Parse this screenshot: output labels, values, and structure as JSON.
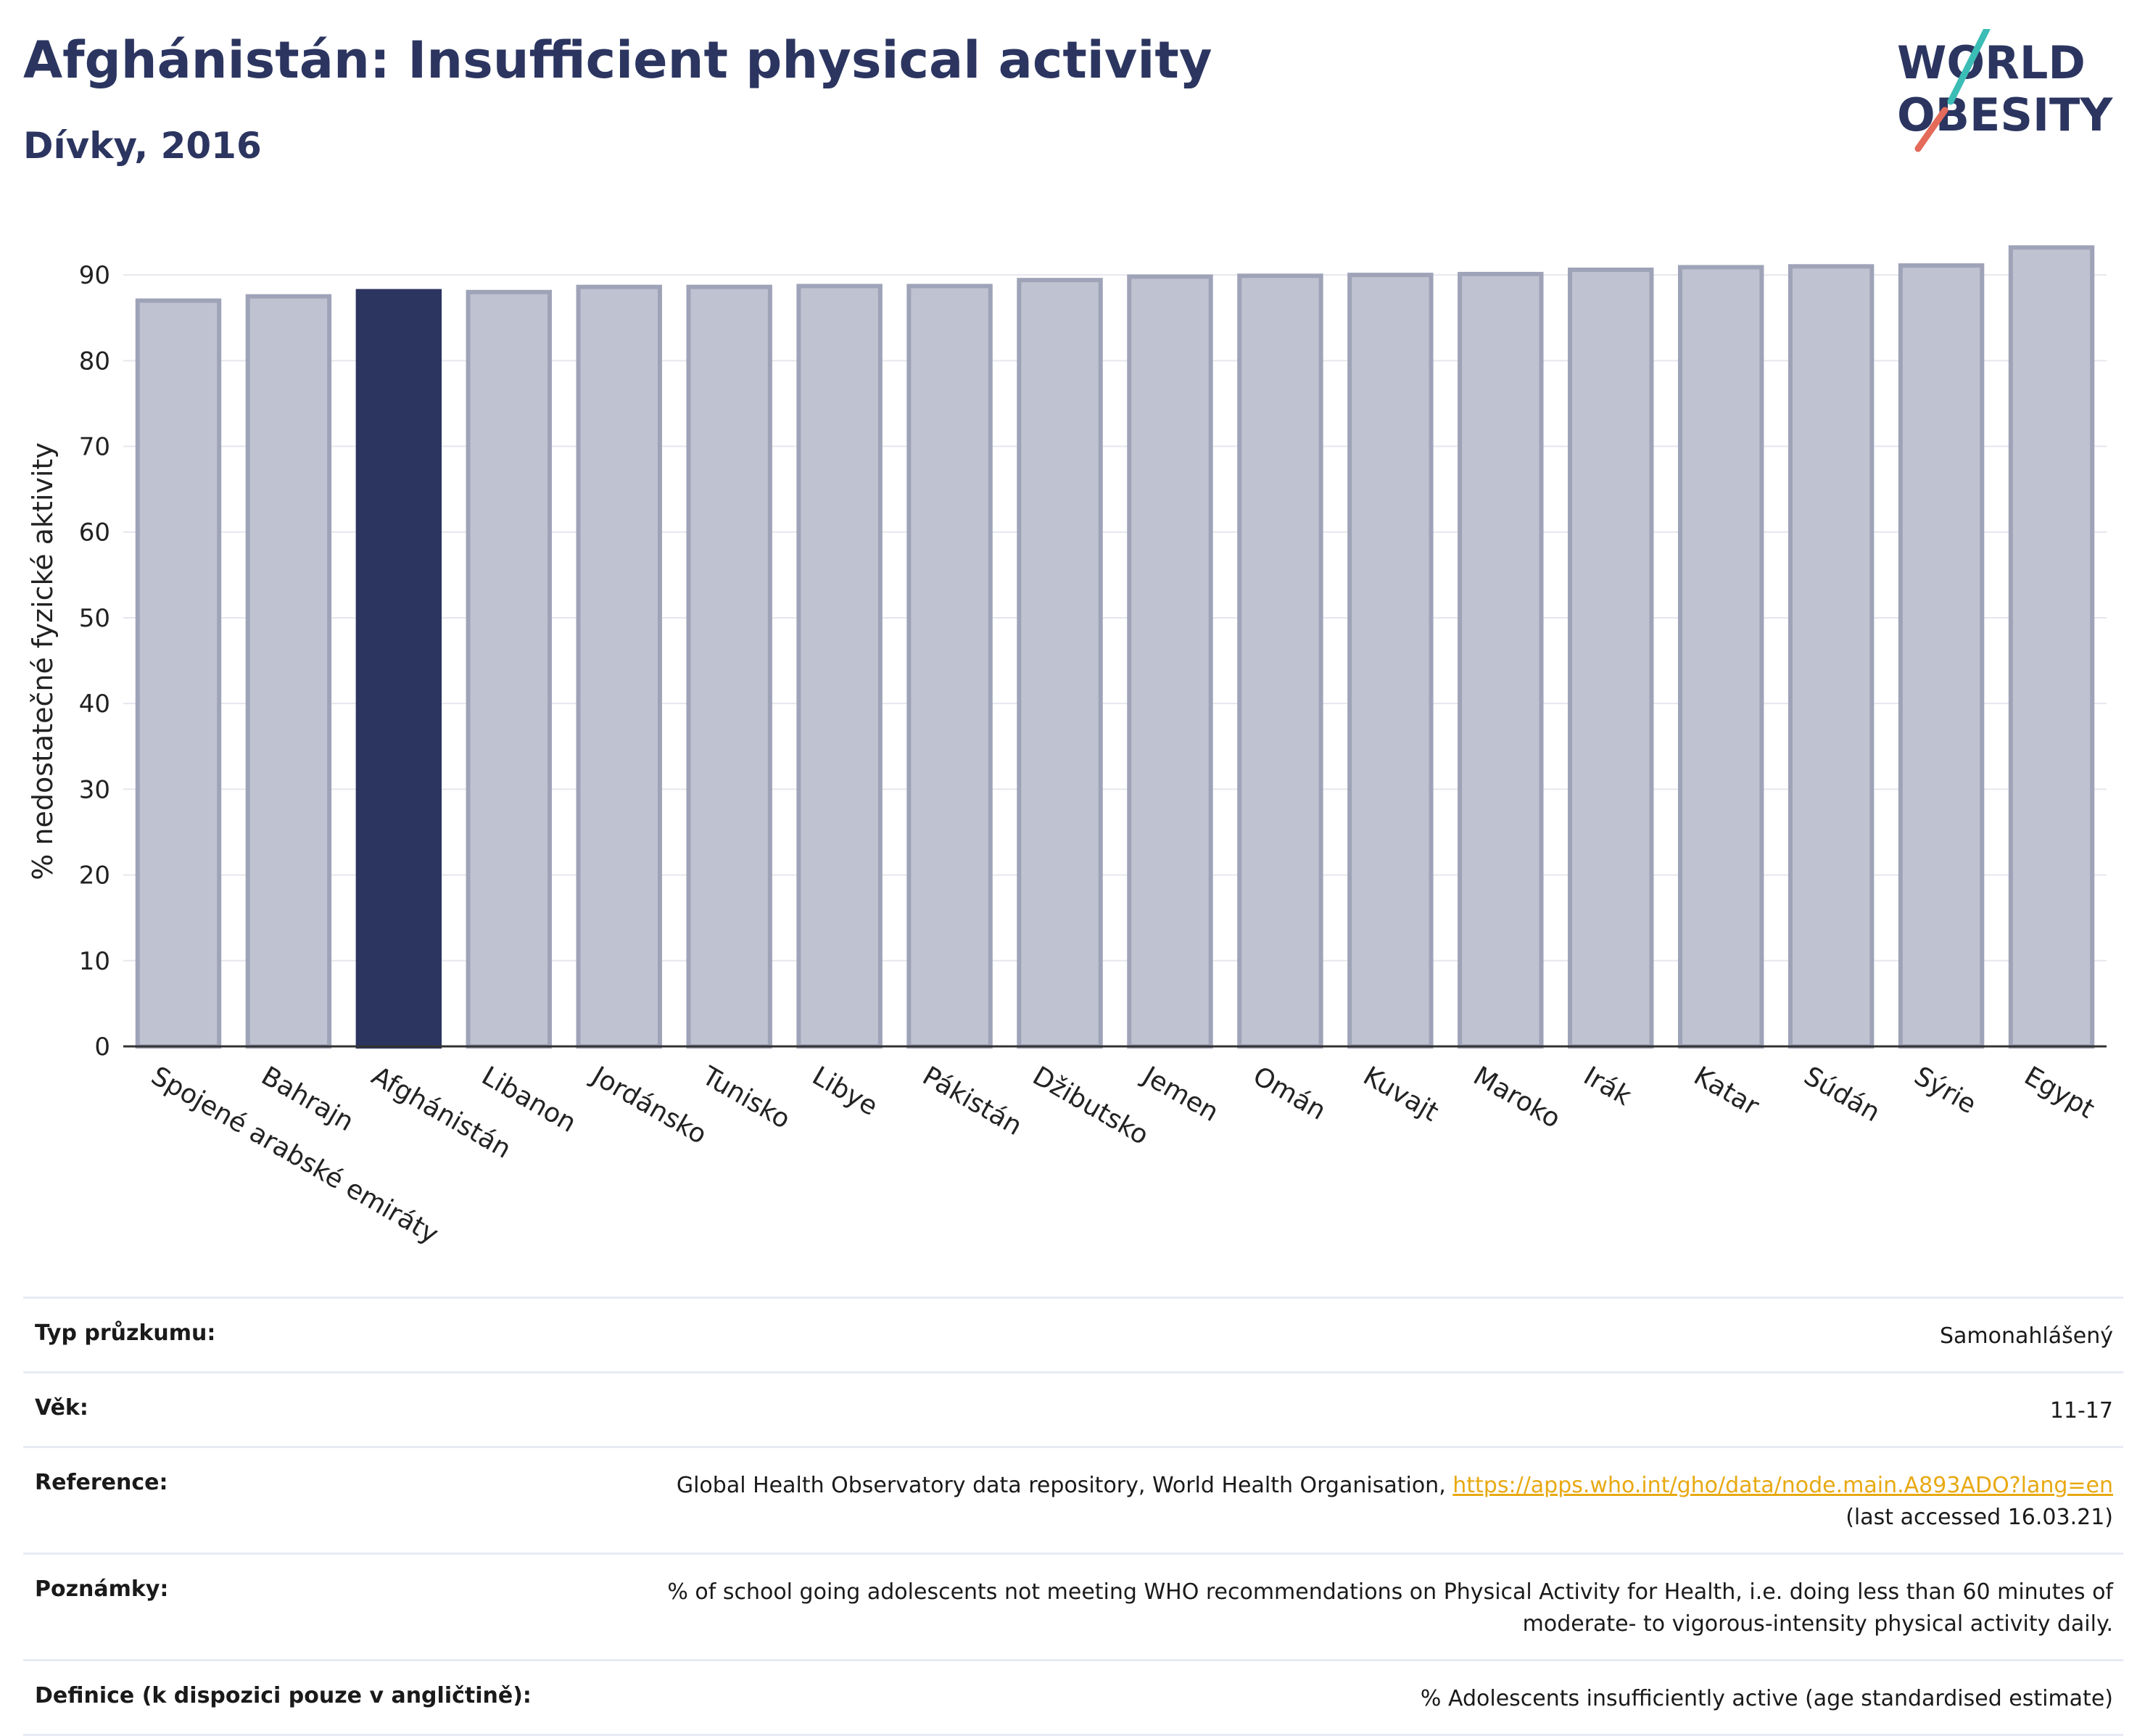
{
  "header": {
    "title": "Afghánistán: Insufficient physical activity",
    "subtitle": "Dívky, 2016",
    "logo_line1": "WORLD",
    "logo_line2": "OBESITY"
  },
  "chart_data": {
    "type": "bar",
    "ylabel": "% nedostatečné fyzické aktivity",
    "xlabel": "",
    "ylim": [
      0,
      95
    ],
    "yticks": [
      0,
      10,
      20,
      30,
      40,
      50,
      60,
      70,
      80,
      90
    ],
    "grid": true,
    "highlight_category": "Afghánistán",
    "categories": [
      "Spojené arabské emiráty",
      "Bahrajn",
      "Afghánistán",
      "Libanon",
      "Jordánsko",
      "Tunisko",
      "Libye",
      "Pákistán",
      "Džibutsko",
      "Jemen",
      "Omán",
      "Kuvajt",
      "Maroko",
      "Irák",
      "Katar",
      "Súdán",
      "Sýrie",
      "Egypt"
    ],
    "values": [
      87.0,
      87.5,
      88.1,
      88.0,
      88.6,
      88.6,
      88.7,
      88.7,
      89.4,
      89.8,
      89.9,
      90.0,
      90.1,
      90.6,
      90.9,
      91.0,
      91.1,
      93.2
    ],
    "colors": {
      "bar": "#bfc2d0",
      "bar_edge": "#9ea3b8",
      "highlight": "#2b3560",
      "grid": "#e6e6ee",
      "axis": "#333333"
    }
  },
  "info": {
    "survey_label": "Typ průzkumu:",
    "survey_value": "Samonahlášený",
    "age_label": "Věk:",
    "age_value": "11-17",
    "reference_label": "Reference:",
    "reference_text": "Global Health Observatory data repository, World Health Organisation, ",
    "reference_link": "https://apps.who.int/gho/data/node.main.A893ADO?lang=en",
    "reference_accessed": "(last accessed 16.03.21)",
    "notes_label": "Poznámky:",
    "notes_line1": "% of school going adolescents not meeting WHO recommendations on Physical Activity for Health, i.e. doing less than 60 minutes of",
    "notes_line2": "moderate- to vigorous-intensity physical activity daily.",
    "definition_label": "Definice (k dispozici pouze v angličtině):",
    "definition_value": "% Adolescents insufficiently active (age standardised estimate)"
  }
}
